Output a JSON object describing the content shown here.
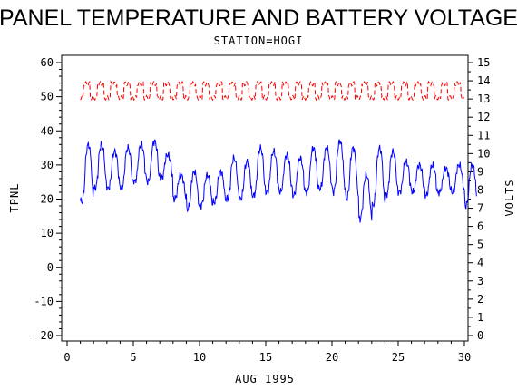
{
  "chart_data": {
    "type": "line",
    "title": "PANEL TEMPERATURE AND BATTERY VOLTAGE",
    "subtitle": "STATION=HOGI",
    "xlabel": "AUG 1995",
    "ylabel_left": "TPNL",
    "ylabel_right": "VOLTS",
    "xlim": [
      0,
      30
    ],
    "ylim_left": [
      -20,
      60
    ],
    "ylim_right": [
      0,
      15
    ],
    "x_ticks": [
      "0",
      "5",
      "10",
      "15",
      "20",
      "25",
      "30"
    ],
    "y_left_ticks": [
      "-20",
      "-10",
      "0",
      "10",
      "20",
      "30",
      "40",
      "50",
      "60"
    ],
    "y_right_ticks": [
      "0",
      "1",
      "2",
      "3",
      "4",
      "5",
      "6",
      "7",
      "8",
      "9",
      "10",
      "11",
      "12",
      "13",
      "14",
      "15"
    ],
    "grid": false,
    "series": [
      {
        "color": "#0000ff",
        "dash": "solid",
        "axis": "left",
        "daily": [
          [
            19,
            36
          ],
          [
            23,
            36
          ],
          [
            23,
            34
          ],
          [
            23,
            35
          ],
          [
            25,
            36
          ],
          [
            25,
            37
          ],
          [
            26,
            33
          ],
          [
            20,
            27
          ],
          [
            17,
            28
          ],
          [
            18,
            27
          ],
          [
            19,
            28
          ],
          [
            20,
            32
          ],
          [
            20,
            31
          ],
          [
            21,
            35
          ],
          [
            22,
            34
          ],
          [
            22,
            33
          ],
          [
            21,
            32
          ],
          [
            22,
            35
          ],
          [
            23,
            35
          ],
          [
            22,
            37
          ],
          [
            20,
            35
          ],
          [
            14,
            27
          ],
          [
            18,
            35
          ],
          [
            21,
            34
          ],
          [
            22,
            31
          ],
          [
            22,
            30
          ],
          [
            21,
            30
          ],
          [
            22,
            29
          ],
          [
            22,
            30
          ],
          [
            18,
            30
          ]
        ]
      },
      {
        "color": "#ff0000",
        "dash": "dashed",
        "axis": "right",
        "low": 12.9,
        "high": 14.0
      }
    ]
  }
}
